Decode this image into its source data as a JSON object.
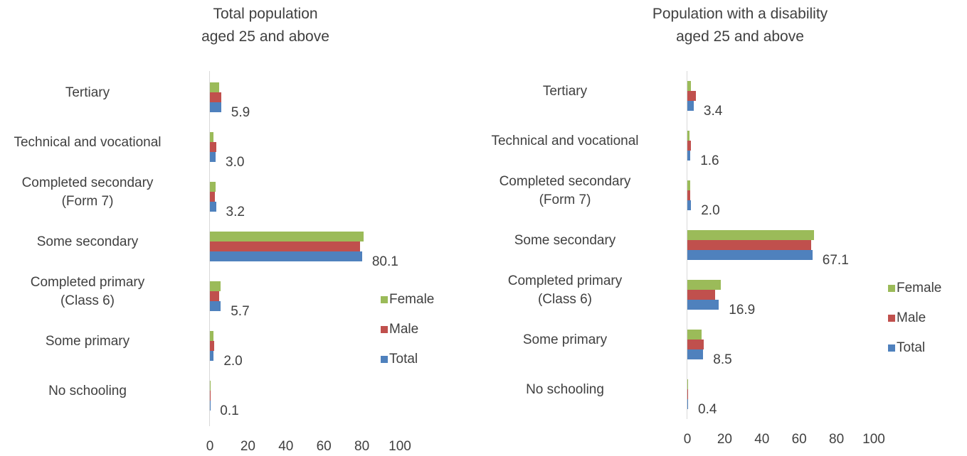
{
  "chart_data": [
    {
      "type": "bar",
      "orientation": "horizontal",
      "title": "Total population\naged 25 and above",
      "categories": [
        "Tertiary",
        "Technical and vocational",
        "Completed secondary\n(Form 7)",
        "Some secondary",
        "Completed primary\n(Class 6)",
        "Some primary",
        "No schooling"
      ],
      "series": [
        {
          "name": "Female",
          "color": "#9bbb59",
          "values": [
            4.9,
            1.9,
            3.0,
            80.9,
            5.6,
            1.7,
            0.1
          ]
        },
        {
          "name": "Male",
          "color": "#c0504d",
          "values": [
            6.0,
            3.4,
            2.6,
            79.0,
            5.0,
            2.3,
            0.1
          ]
        },
        {
          "name": "Total",
          "color": "#4f81bd",
          "values": [
            5.9,
            3.0,
            3.2,
            80.1,
            5.7,
            2.0,
            0.1
          ],
          "value_labels": [
            "5.9",
            "3.0",
            "3.2",
            "80.1",
            "5.7",
            "2.0",
            "0.1"
          ]
        }
      ],
      "xlim": [
        0,
        100
      ],
      "xticks": [
        0,
        20,
        40,
        60,
        80,
        100
      ],
      "legend": "right"
    },
    {
      "type": "bar",
      "orientation": "horizontal",
      "title": "Population with a disability\naged 25 and above",
      "categories": [
        "Tertiary",
        "Technical and vocational",
        "Completed secondary\n(Form 7)",
        "Some secondary",
        "Completed primary\n(Class 6)",
        "Some primary",
        "No schooling"
      ],
      "series": [
        {
          "name": "Female",
          "color": "#9bbb59",
          "values": [
            2.0,
            1.2,
            1.7,
            68.0,
            18.0,
            7.6,
            0.3
          ]
        },
        {
          "name": "Male",
          "color": "#c0504d",
          "values": [
            4.5,
            1.8,
            1.4,
            66.4,
            15.0,
            8.9,
            0.4
          ]
        },
        {
          "name": "Total",
          "color": "#4f81bd",
          "values": [
            3.4,
            1.6,
            2.0,
            67.1,
            16.9,
            8.5,
            0.4
          ],
          "value_labels": [
            "3.4",
            "1.6",
            "2.0",
            "67.1",
            "16.9",
            "8.5",
            "0.4"
          ]
        }
      ],
      "xlim": [
        0,
        100
      ],
      "xticks": [
        0,
        20,
        40,
        60,
        80,
        100
      ],
      "legend": "right"
    }
  ]
}
